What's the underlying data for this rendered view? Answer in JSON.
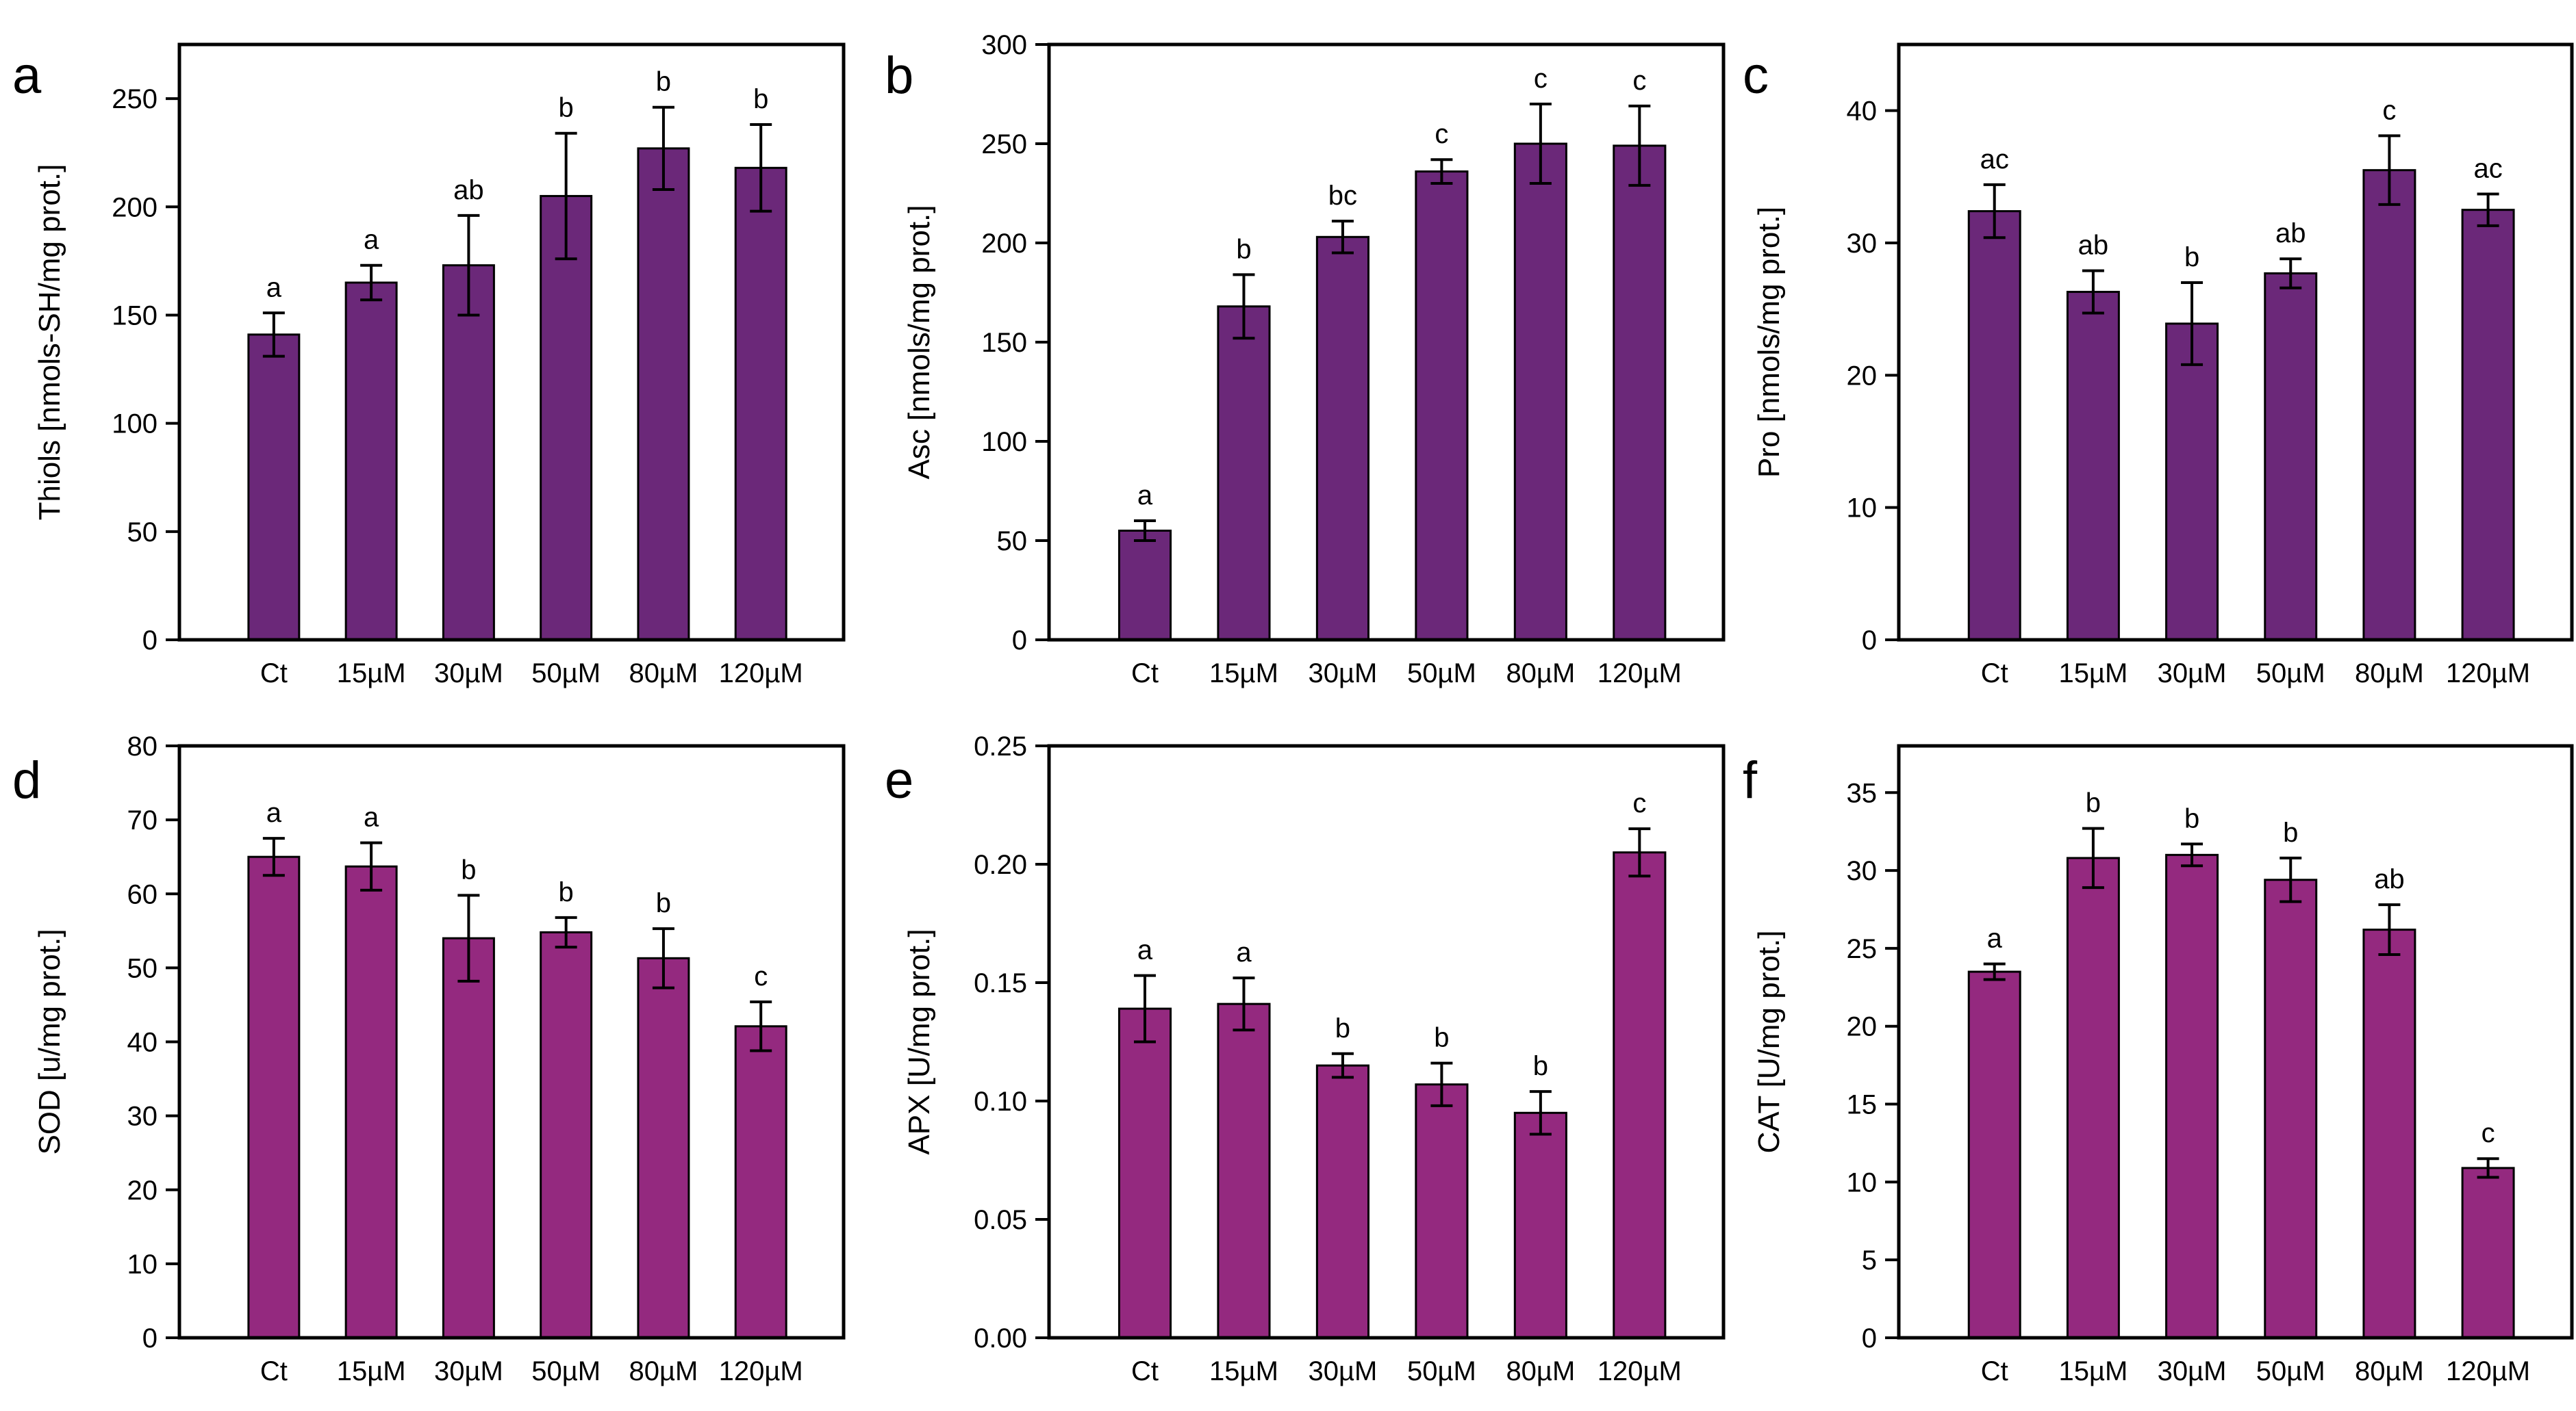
{
  "figure": {
    "colors": {
      "row_top": "#6b2879",
      "row_bottom": "#94297f",
      "bar_stroke": "#000000"
    }
  },
  "chart_data": [
    {
      "type": "bar",
      "panel": "a",
      "ylabel": "Thiols [nmols-SH/mg prot.]",
      "categories": [
        "Ct",
        "15µM",
        "30µM",
        "50µM",
        "80µM",
        "120µM"
      ],
      "values": [
        141,
        165,
        173,
        205,
        227,
        218
      ],
      "errors": [
        10,
        8,
        23,
        29,
        19,
        20
      ],
      "significance": [
        "a",
        "a",
        "ab",
        "b",
        "b",
        "b"
      ],
      "ylim": [
        0,
        275
      ],
      "yticks": [
        0,
        50,
        100,
        150,
        200,
        250
      ],
      "ytick_labels": [
        "0",
        "50",
        "100",
        "150",
        "200",
        "250"
      ],
      "color": "#6b2879"
    },
    {
      "type": "bar",
      "panel": "b",
      "ylabel": "Asc [nmols/mg prot.]",
      "categories": [
        "Ct",
        "15µM",
        "30µM",
        "50µM",
        "80µM",
        "120µM"
      ],
      "values": [
        55,
        168,
        203,
        236,
        250,
        249
      ],
      "errors": [
        5,
        16,
        8,
        6,
        20,
        20
      ],
      "significance": [
        "a",
        "b",
        "bc",
        "c",
        "c",
        "c"
      ],
      "ylim": [
        0,
        300
      ],
      "yticks": [
        0,
        50,
        100,
        150,
        200,
        250,
        300
      ],
      "ytick_labels": [
        "0",
        "50",
        "100",
        "150",
        "200",
        "250",
        "300"
      ],
      "color": "#6b2879"
    },
    {
      "type": "bar",
      "panel": "c",
      "ylabel": "Pro [nmols/mg prot.]",
      "categories": [
        "Ct",
        "15µM",
        "30µM",
        "50µM",
        "80µM",
        "120µM"
      ],
      "values": [
        32.4,
        26.3,
        23.9,
        27.7,
        35.5,
        32.5
      ],
      "errors": [
        2.0,
        1.6,
        3.1,
        1.1,
        2.6,
        1.2
      ],
      "significance": [
        "ac",
        "ab",
        "b",
        "ab",
        "c",
        "ac"
      ],
      "ylim": [
        0,
        45
      ],
      "yticks": [
        0,
        10,
        20,
        30,
        40
      ],
      "ytick_labels": [
        "0",
        "10",
        "20",
        "30",
        "40"
      ],
      "color": "#6b2879"
    },
    {
      "type": "bar",
      "panel": "d",
      "ylabel": "SOD [u/mg prot.]",
      "categories": [
        "Ct",
        "15µM",
        "30µM",
        "50µM",
        "80µM",
        "120µM"
      ],
      "values": [
        65.0,
        63.7,
        54.0,
        54.8,
        51.3,
        42.1
      ],
      "errors": [
        2.5,
        3.2,
        5.8,
        2.0,
        4.0,
        3.3
      ],
      "significance": [
        "a",
        "a",
        "b",
        "b",
        "b",
        "c"
      ],
      "ylim": [
        0,
        80
      ],
      "yticks": [
        0,
        10,
        20,
        30,
        40,
        50,
        60,
        70,
        80
      ],
      "ytick_labels": [
        "0",
        "10",
        "20",
        "30",
        "40",
        "50",
        "60",
        "70",
        "80"
      ],
      "color": "#94297f"
    },
    {
      "type": "bar",
      "panel": "e",
      "ylabel": "APX [U/mg prot.]",
      "categories": [
        "Ct",
        "15µM",
        "30µM",
        "50µM",
        "80µM",
        "120µM"
      ],
      "values": [
        0.139,
        0.141,
        0.115,
        0.107,
        0.095,
        0.205
      ],
      "errors": [
        0.014,
        0.011,
        0.005,
        0.009,
        0.009,
        0.01
      ],
      "significance": [
        "a",
        "a",
        "b",
        "b",
        "b",
        "c"
      ],
      "ylim": [
        0,
        0.25
      ],
      "yticks": [
        0,
        0.05,
        0.1,
        0.15,
        0.2,
        0.25
      ],
      "ytick_labels": [
        "0.00",
        "0.05",
        "0.10",
        "0.15",
        "0.20",
        "0.25"
      ],
      "color": "#94297f"
    },
    {
      "type": "bar",
      "panel": "f",
      "ylabel": "CAT [U/mg prot.]",
      "categories": [
        "Ct",
        "15µM",
        "30µM",
        "50µM",
        "80µM",
        "120µM"
      ],
      "values": [
        23.5,
        30.8,
        31.0,
        29.4,
        26.2,
        10.9
      ],
      "errors": [
        0.5,
        1.9,
        0.7,
        1.4,
        1.6,
        0.6
      ],
      "significance": [
        "a",
        "b",
        "b",
        "b",
        "ab",
        "c"
      ],
      "ylim": [
        0,
        38
      ],
      "yticks": [
        0,
        5,
        10,
        15,
        20,
        25,
        30,
        35
      ],
      "ytick_labels": [
        "0",
        "5",
        "10",
        "15",
        "20",
        "25",
        "30",
        "35"
      ],
      "color": "#94297f"
    }
  ]
}
